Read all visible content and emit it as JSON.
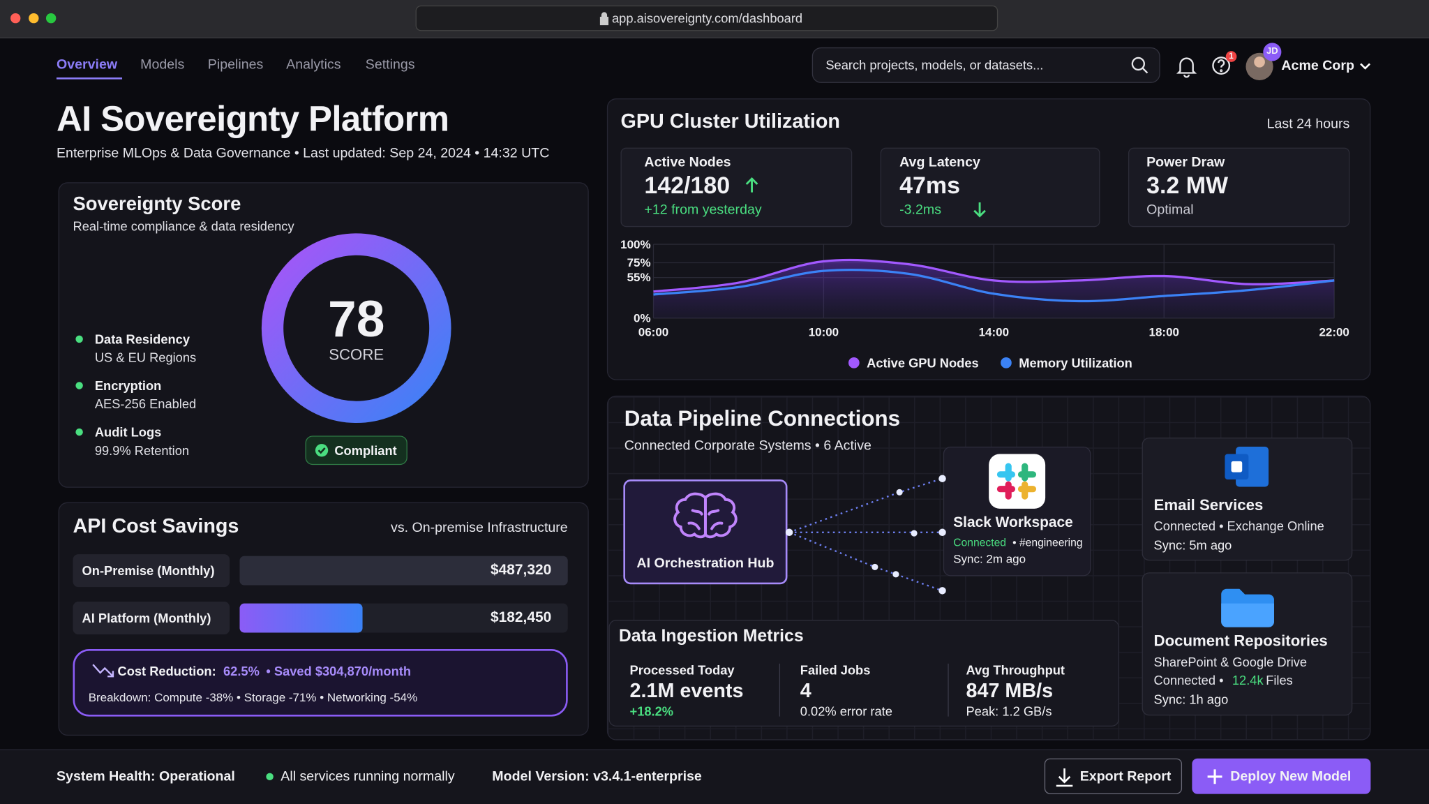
{
  "browser": {
    "url": "app.aisovereignty.com/dashboard"
  },
  "nav": {
    "tabs": [
      "Overview",
      "Models",
      "Pipelines",
      "Analytics",
      "Settings"
    ],
    "search_placeholder": "Search projects, models, or datasets...",
    "help_badge": "1",
    "avatar_initials": "JD",
    "account": "Acme Corp"
  },
  "header": {
    "title": "AI Sovereignty Platform",
    "subtitle": "Enterprise MLOps & Data Governance • Last updated: Sep 24, 2024 • 14:32 UTC"
  },
  "sovereignty": {
    "title": "Sovereignty Score",
    "subtitle": "Real-time compliance & data residency",
    "score": 78,
    "score_label": "SCORE",
    "status": "Compliant",
    "items": [
      {
        "label": "Data Residency",
        "detail": "US & EU Regions"
      },
      {
        "label": "Encryption",
        "detail": "AES-256 Enabled"
      },
      {
        "label": "Audit Logs",
        "detail": "99.9% Retention"
      }
    ]
  },
  "gpu": {
    "title": "GPU Cluster Utilization",
    "period": "Last 24 hours",
    "stats": [
      {
        "label": "Active Nodes",
        "value": "142/180",
        "change": "+12 from yesterday"
      },
      {
        "label": "Avg Latency",
        "value": "47ms",
        "change": "-3.2ms"
      },
      {
        "label": "Power Draw",
        "value": "3.2 MW",
        "change": "Optimal"
      }
    ]
  },
  "cost": {
    "title": "API Cost Savings",
    "subtitle": "vs. On-premise Infrastructure",
    "reduction_label": "Cost Reduction:",
    "reduction_value": "62.5%",
    "saved": "• Saved $304,870/month",
    "breakdown": "Breakdown: Compute -38% • Storage -71% • Networking -54%"
  },
  "pipeline": {
    "title": "Data Pipeline Connections",
    "subtitle": "Connected Corporate Systems • 6 Active",
    "hub": "AI Orchestration Hub",
    "slack": {
      "name": "Slack Workspace",
      "status": "Connected",
      "channel": "• #engineering",
      "sync": "Sync: 2m ago"
    },
    "email": {
      "name": "Email Services",
      "status": "Connected • Exchange Online",
      "sync": "Sync: 5m ago"
    },
    "docs": {
      "name": "Document Repositories",
      "source": "SharePoint & Google Drive",
      "status": "Connected •",
      "files": "12.4k",
      "files_label": "Files",
      "sync": "Sync: 1h ago"
    }
  },
  "ingestion": {
    "title": "Data Ingestion Metrics",
    "metrics": [
      {
        "label": "Processed Today",
        "value": "2.1M events",
        "note": "+18.2%"
      },
      {
        "label": "Failed Jobs",
        "value": "4",
        "note": "0.02% error rate"
      },
      {
        "label": "Avg Throughput",
        "value": "847 MB/s",
        "note": "Peak: 1.2 GB/s"
      }
    ]
  },
  "footer": {
    "health": "System Health: Operational",
    "services": "All services running normally",
    "version": "Model Version: v3.4.1-enterprise",
    "export": "Export Report",
    "deploy": "Deploy New Model"
  },
  "chart_data": [
    {
      "type": "line",
      "x": [
        6,
        8,
        10,
        12,
        14,
        16,
        18,
        20,
        22
      ],
      "xlim": [
        6,
        22
      ],
      "xticks": [
        {
          "value": 6,
          "label": "06:00"
        },
        {
          "value": 10,
          "label": "10:00"
        },
        {
          "value": 14,
          "label": "14:00"
        },
        {
          "value": 18,
          "label": "18:00"
        },
        {
          "value": 22,
          "label": "22:00"
        }
      ],
      "ylim": [
        0,
        100
      ],
      "yticks": [
        {
          "value": 0,
          "label": "0%"
        },
        {
          "value": 55,
          "label": "55%"
        },
        {
          "value": 75,
          "label": "75%"
        },
        {
          "value": 100,
          "label": "100%"
        }
      ],
      "grid": true,
      "series": [
        {
          "name": "Active GPU Nodes",
          "color": "#a259ff",
          "values": [
            36,
            48,
            77,
            73,
            51,
            51,
            57,
            46,
            51
          ]
        },
        {
          "name": "Memory Utilization",
          "color": "#3b82f6",
          "values": [
            32,
            42,
            64,
            60,
            33,
            23,
            30,
            38,
            51
          ]
        }
      ]
    },
    {
      "type": "hbar",
      "categories": [
        "On-Premise (Monthly)",
        "AI Platform (Monthly)"
      ],
      "values": [
        487320,
        182450
      ],
      "value_labels": [
        "$487,320",
        "$182,450"
      ],
      "xlim": [
        0,
        487320
      ],
      "colors": [
        "#2c2d3a",
        "#8b5cf6"
      ]
    }
  ]
}
